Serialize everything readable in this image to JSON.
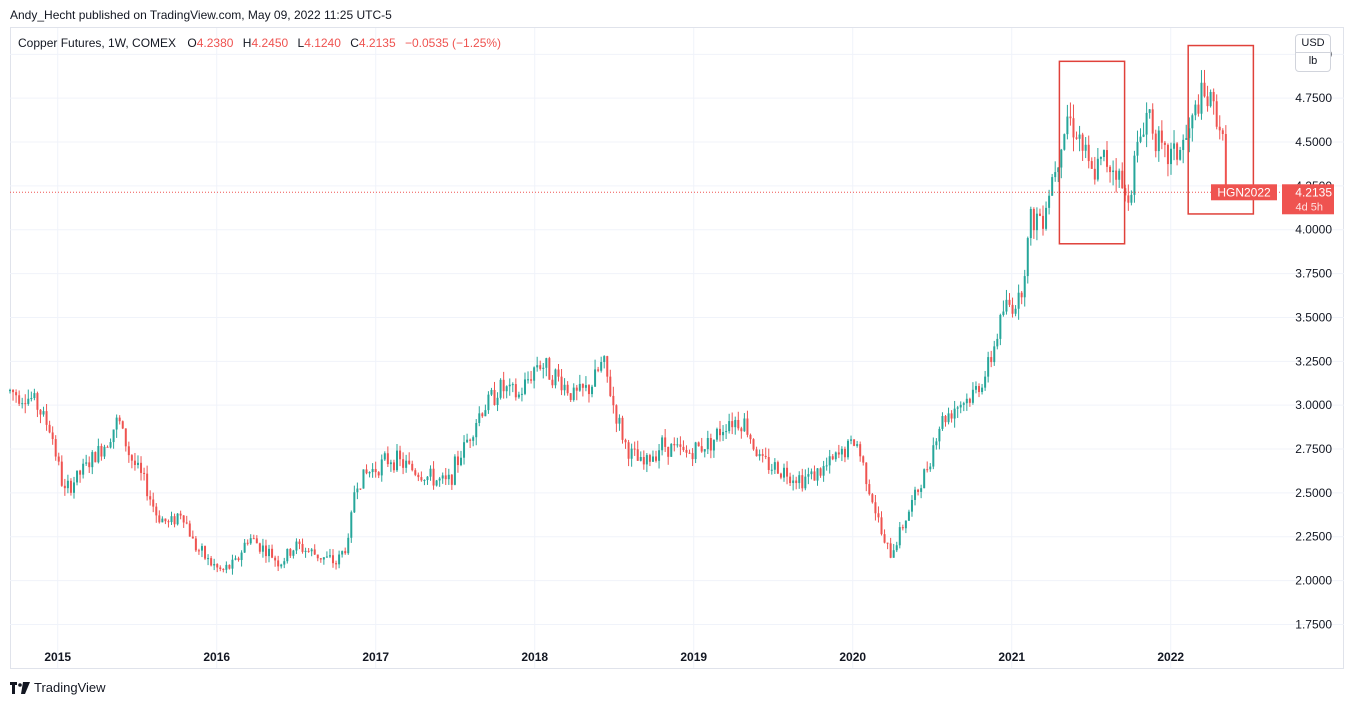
{
  "header": {
    "published_by": "Andy_Hecht published on TradingView.com, May 09, 2022 11:25 UTC-5"
  },
  "legend": {
    "symbol": "Copper Futures, 1W, COMEX",
    "open_label": "O",
    "open": "4.2380",
    "high_label": "H",
    "high": "4.2450",
    "low_label": "L",
    "low": "4.1240",
    "close_label": "C",
    "close": "4.2135",
    "change": "−0.0535 (−1.25%)"
  },
  "unit_selector": {
    "currency": "USD",
    "unit": "lb"
  },
  "price_tag": {
    "ticker": "HGN2022",
    "price": "4.2135",
    "countdown": "4d 5h"
  },
  "footer": {
    "brand": "TradingView"
  },
  "colors": {
    "up": "#26a69a",
    "down": "#ef5350",
    "grid": "#f0f3fa",
    "annotation": "#e0413a",
    "tag": "#ef5350"
  },
  "chart_data": {
    "type": "candlestick",
    "interval": "1W",
    "x_start": 2014.7,
    "x_end": 2022.7,
    "ylim": [
      1.65,
      5.15
    ],
    "y_ticks": [
      "1.7500",
      "2.0000",
      "2.2500",
      "2.5000",
      "2.7500",
      "3.0000",
      "3.2500",
      "3.5000",
      "3.7500",
      "4.0000",
      "4.2500",
      "4.5000",
      "4.7500",
      "5.0000"
    ],
    "x_ticks": [
      {
        "label": "2015",
        "t": 2015.0
      },
      {
        "label": "2016",
        "t": 2016.0
      },
      {
        "label": "2017",
        "t": 2017.0
      },
      {
        "label": "2018",
        "t": 2018.0
      },
      {
        "label": "2019",
        "t": 2019.0
      },
      {
        "label": "2020",
        "t": 2020.0
      },
      {
        "label": "2021",
        "t": 2021.0
      },
      {
        "label": "2022",
        "t": 2022.0
      }
    ],
    "price_anchors": [
      [
        2014.7,
        3.08
      ],
      [
        2014.85,
        3.03
      ],
      [
        2014.96,
        2.85
      ],
      [
        2015.04,
        2.5
      ],
      [
        2015.15,
        2.62
      ],
      [
        2015.3,
        2.78
      ],
      [
        2015.38,
        2.92
      ],
      [
        2015.45,
        2.72
      ],
      [
        2015.55,
        2.55
      ],
      [
        2015.62,
        2.38
      ],
      [
        2015.7,
        2.32
      ],
      [
        2015.78,
        2.4
      ],
      [
        2015.86,
        2.2
      ],
      [
        2015.96,
        2.1
      ],
      [
        2016.03,
        2.05
      ],
      [
        2016.12,
        2.1
      ],
      [
        2016.2,
        2.25
      ],
      [
        2016.3,
        2.18
      ],
      [
        2016.4,
        2.1
      ],
      [
        2016.5,
        2.2
      ],
      [
        2016.62,
        2.15
      ],
      [
        2016.75,
        2.1
      ],
      [
        2016.83,
        2.22
      ],
      [
        2016.87,
        2.55
      ],
      [
        2016.96,
        2.62
      ],
      [
        2017.1,
        2.7
      ],
      [
        2017.3,
        2.6
      ],
      [
        2017.45,
        2.55
      ],
      [
        2017.55,
        2.75
      ],
      [
        2017.65,
        2.95
      ],
      [
        2017.78,
        3.1
      ],
      [
        2017.9,
        3.05
      ],
      [
        2018.02,
        3.25
      ],
      [
        2018.15,
        3.15
      ],
      [
        2018.25,
        3.05
      ],
      [
        2018.35,
        3.1
      ],
      [
        2018.43,
        3.25
      ],
      [
        2018.5,
        2.98
      ],
      [
        2018.58,
        2.75
      ],
      [
        2018.68,
        2.65
      ],
      [
        2018.8,
        2.78
      ],
      [
        2018.95,
        2.72
      ],
      [
        2019.12,
        2.8
      ],
      [
        2019.22,
        2.92
      ],
      [
        2019.32,
        2.9
      ],
      [
        2019.42,
        2.68
      ],
      [
        2019.58,
        2.62
      ],
      [
        2019.68,
        2.58
      ],
      [
        2019.8,
        2.62
      ],
      [
        2019.9,
        2.7
      ],
      [
        2020.02,
        2.8
      ],
      [
        2020.1,
        2.55
      ],
      [
        2020.2,
        2.2
      ],
      [
        2020.24,
        2.15
      ],
      [
        2020.33,
        2.35
      ],
      [
        2020.45,
        2.6
      ],
      [
        2020.55,
        2.9
      ],
      [
        2020.65,
        3.0
      ],
      [
        2020.75,
        3.05
      ],
      [
        2020.85,
        3.2
      ],
      [
        2020.95,
        3.55
      ],
      [
        2021.05,
        3.6
      ],
      [
        2021.12,
        4.05
      ],
      [
        2021.2,
        4.1
      ],
      [
        2021.28,
        4.4
      ],
      [
        2021.35,
        4.65
      ],
      [
        2021.42,
        4.55
      ],
      [
        2021.5,
        4.3
      ],
      [
        2021.58,
        4.4
      ],
      [
        2021.66,
        4.35
      ],
      [
        2021.72,
        4.15
      ],
      [
        2021.8,
        4.5
      ],
      [
        2021.86,
        4.7
      ],
      [
        2021.95,
        4.4
      ],
      [
        2022.05,
        4.45
      ],
      [
        2022.12,
        4.55
      ],
      [
        2022.18,
        4.75
      ],
      [
        2022.25,
        4.72
      ],
      [
        2022.3,
        4.65
      ],
      [
        2022.33,
        4.45
      ],
      [
        2022.36,
        4.21
      ]
    ],
    "last_close": 4.2135,
    "annotation_boxes": [
      {
        "t0": 2021.3,
        "t1": 2021.71,
        "p_top": 4.96,
        "p_bottom": 3.92
      },
      {
        "t0": 2022.11,
        "t1": 2022.52,
        "p_top": 5.05,
        "p_bottom": 4.09
      }
    ]
  }
}
